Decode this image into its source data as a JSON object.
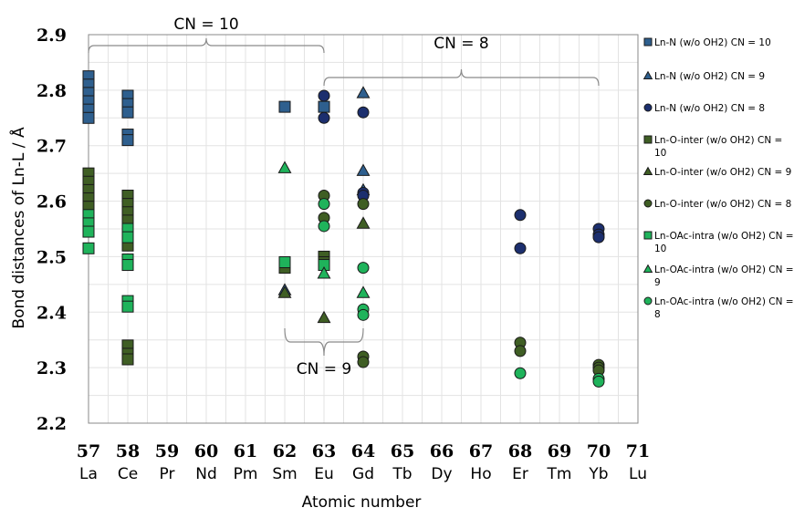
{
  "chart_data": {
    "type": "scatter",
    "title": "",
    "xlabel": "Atomic number",
    "ylabel": "Bond distances of Ln-L / Å",
    "xlim": [
      57,
      71
    ],
    "ylim": [
      2.2,
      2.9
    ],
    "y_ticks": [
      "2.2",
      "2.3",
      "2.4",
      "2.5",
      "2.6",
      "2.7",
      "2.8",
      "2.9"
    ],
    "x_ticks": [
      {
        "num": "57",
        "sym": "La"
      },
      {
        "num": "58",
        "sym": "Ce"
      },
      {
        "num": "59",
        "sym": "Pr"
      },
      {
        "num": "60",
        "sym": "Nd"
      },
      {
        "num": "61",
        "sym": "Pm"
      },
      {
        "num": "62",
        "sym": "Sm"
      },
      {
        "num": "63",
        "sym": "Eu"
      },
      {
        "num": "64",
        "sym": "Gd"
      },
      {
        "num": "65",
        "sym": "Tb"
      },
      {
        "num": "66",
        "sym": "Dy"
      },
      {
        "num": "67",
        "sym": "Ho"
      },
      {
        "num": "68",
        "sym": "Er"
      },
      {
        "num": "69",
        "sym": "Tm"
      },
      {
        "num": "70",
        "sym": "Yb"
      },
      {
        "num": "71",
        "sym": "Lu"
      }
    ],
    "grid": true,
    "legend_position": "right",
    "annotations": [
      {
        "text": "CN = 10",
        "range": [
          57,
          63
        ]
      },
      {
        "text": "CN = 8",
        "range": [
          63,
          70
        ]
      },
      {
        "text": "CN = 9",
        "range": [
          62,
          64
        ]
      }
    ],
    "series": [
      {
        "name": "Ln-N (w/o OH2) CN = 10",
        "marker": "square",
        "color": "#2e5f8e",
        "points": [
          [
            57,
            2.825
          ],
          [
            57,
            2.81
          ],
          [
            57,
            2.795
          ],
          [
            57,
            2.78
          ],
          [
            57,
            2.765
          ],
          [
            57,
            2.75
          ],
          [
            58,
            2.79
          ],
          [
            58,
            2.775
          ],
          [
            58,
            2.76
          ],
          [
            58,
            2.72
          ],
          [
            58,
            2.71
          ],
          [
            62,
            2.77
          ],
          [
            63,
            2.77
          ]
        ]
      },
      {
        "name": "Ln-N (w/o OH2) CN = 9",
        "marker": "triangle",
        "color": "#2e5f8e",
        "points": [
          [
            62,
            2.44
          ],
          [
            64,
            2.795
          ],
          [
            64,
            2.655
          ],
          [
            64,
            2.62
          ]
        ]
      },
      {
        "name": "Ln-N (w/o OH2) CN = 8",
        "marker": "circle",
        "color": "#1c2f6e",
        "points": [
          [
            63,
            2.79
          ],
          [
            63,
            2.75
          ],
          [
            64,
            2.76
          ],
          [
            64,
            2.615
          ],
          [
            64,
            2.61
          ],
          [
            68,
            2.575
          ],
          [
            68,
            2.515
          ],
          [
            70,
            2.55
          ],
          [
            70,
            2.54
          ],
          [
            70,
            2.535
          ]
        ]
      },
      {
        "name": "Ln-O-inter (w/o OH2) CN = 10",
        "marker": "square",
        "color": "#3f5e24",
        "points": [
          [
            57,
            2.65
          ],
          [
            57,
            2.635
          ],
          [
            57,
            2.62
          ],
          [
            57,
            2.605
          ],
          [
            57,
            2.59
          ],
          [
            58,
            2.61
          ],
          [
            58,
            2.595
          ],
          [
            58,
            2.58
          ],
          [
            58,
            2.565
          ],
          [
            58,
            2.55
          ],
          [
            58,
            2.535
          ],
          [
            58,
            2.52
          ],
          [
            58,
            2.34
          ],
          [
            58,
            2.325
          ],
          [
            58,
            2.315
          ],
          [
            62,
            2.48
          ],
          [
            63,
            2.5
          ],
          [
            63,
            2.49
          ]
        ]
      },
      {
        "name": "Ln-O-inter (w/o OH2) CN = 9",
        "marker": "triangle",
        "color": "#3f5e24",
        "points": [
          [
            62,
            2.435
          ],
          [
            63,
            2.39
          ],
          [
            64,
            2.56
          ]
        ]
      },
      {
        "name": "Ln-O-inter (w/o OH2) CN = 8",
        "marker": "circle",
        "color": "#3f5e24",
        "points": [
          [
            63,
            2.61
          ],
          [
            63,
            2.57
          ],
          [
            64,
            2.595
          ],
          [
            64,
            2.32
          ],
          [
            64,
            2.31
          ],
          [
            68,
            2.345
          ],
          [
            68,
            2.33
          ],
          [
            70,
            2.305
          ],
          [
            70,
            2.3
          ],
          [
            70,
            2.295
          ]
        ]
      },
      {
        "name": "Ln-OAc-intra (w/o OH2) CN = 10",
        "marker": "square",
        "color": "#1fb35b",
        "points": [
          [
            57,
            2.575
          ],
          [
            57,
            2.56
          ],
          [
            57,
            2.545
          ],
          [
            57,
            2.515
          ],
          [
            58,
            2.55
          ],
          [
            58,
            2.535
          ],
          [
            58,
            2.495
          ],
          [
            58,
            2.485
          ],
          [
            58,
            2.42
          ],
          [
            58,
            2.41
          ],
          [
            62,
            2.49
          ],
          [
            63,
            2.485
          ]
        ]
      },
      {
        "name": "Ln-OAc-intra (w/o OH2) CN = 9",
        "marker": "triangle",
        "color": "#1fb35b",
        "points": [
          [
            62,
            2.66
          ],
          [
            63,
            2.47
          ],
          [
            64,
            2.435
          ]
        ]
      },
      {
        "name": "Ln-OAc-intra (w/o OH2) CN = 8",
        "marker": "circle",
        "color": "#1fb35b",
        "points": [
          [
            63,
            2.595
          ],
          [
            63,
            2.555
          ],
          [
            64,
            2.48
          ],
          [
            64,
            2.405
          ],
          [
            64,
            2.395
          ],
          [
            68,
            2.29
          ],
          [
            70,
            2.28
          ],
          [
            70,
            2.275
          ]
        ]
      }
    ]
  }
}
